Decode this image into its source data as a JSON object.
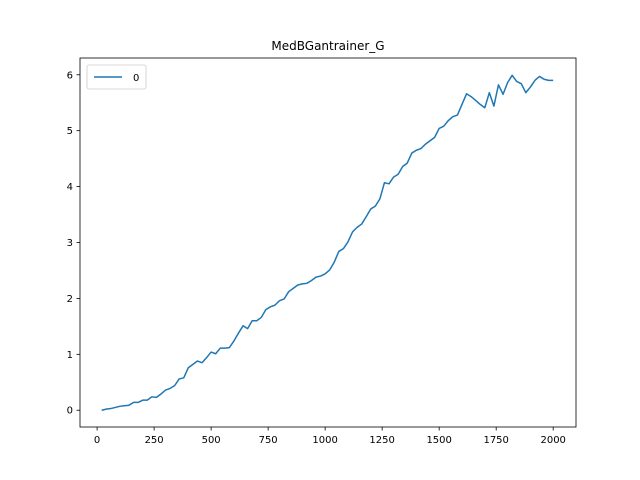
{
  "chart_data": {
    "type": "line",
    "title": "MedBGantrainer_G",
    "xlabel": "",
    "ylabel": "",
    "xlim": [
      -75,
      2100
    ],
    "ylim": [
      -0.3,
      6.3
    ],
    "xticks": [
      0,
      250,
      500,
      750,
      1000,
      1250,
      1500,
      1750,
      2000
    ],
    "xtick_labels": [
      "0",
      "250",
      "500",
      "750",
      "1000",
      "1250",
      "1500",
      "1750",
      "2000"
    ],
    "yticks": [
      0,
      1,
      2,
      3,
      4,
      5,
      6
    ],
    "ytick_labels": [
      "0",
      "1",
      "2",
      "3",
      "4",
      "5",
      "6"
    ],
    "grid": false,
    "legend_position": "top-left",
    "series": [
      {
        "name": "0",
        "color": "#1f77b4",
        "x": [
          20,
          40,
          60,
          80,
          100,
          120,
          140,
          160,
          180,
          200,
          220,
          240,
          260,
          280,
          300,
          320,
          340,
          360,
          380,
          400,
          420,
          440,
          460,
          480,
          500,
          520,
          540,
          560,
          580,
          600,
          620,
          640,
          660,
          680,
          700,
          720,
          740,
          760,
          780,
          800,
          820,
          840,
          860,
          880,
          900,
          920,
          940,
          960,
          980,
          1000,
          1020,
          1040,
          1060,
          1080,
          1100,
          1120,
          1140,
          1160,
          1180,
          1200,
          1220,
          1240,
          1260,
          1280,
          1300,
          1320,
          1340,
          1360,
          1380,
          1400,
          1420,
          1440,
          1460,
          1480,
          1500,
          1520,
          1540,
          1560,
          1580,
          1600,
          1620,
          1640,
          1660,
          1680,
          1700,
          1720,
          1740,
          1760,
          1780,
          1800,
          1820,
          1840,
          1860,
          1880,
          1900,
          1920,
          1940,
          1960,
          1980,
          2000
        ],
        "y": [
          0.0,
          0.02,
          0.03,
          0.05,
          0.07,
          0.08,
          0.09,
          0.14,
          0.14,
          0.18,
          0.18,
          0.24,
          0.23,
          0.29,
          0.36,
          0.39,
          0.44,
          0.56,
          0.58,
          0.76,
          0.82,
          0.88,
          0.85,
          0.94,
          1.04,
          1.01,
          1.11,
          1.11,
          1.12,
          1.24,
          1.38,
          1.51,
          1.46,
          1.6,
          1.6,
          1.66,
          1.8,
          1.85,
          1.88,
          1.96,
          1.99,
          2.12,
          2.18,
          2.24,
          2.26,
          2.27,
          2.32,
          2.38,
          2.4,
          2.44,
          2.51,
          2.65,
          2.84,
          2.89,
          3.01,
          3.19,
          3.27,
          3.33,
          3.46,
          3.6,
          3.65,
          3.78,
          4.07,
          4.05,
          4.17,
          4.22,
          4.36,
          4.42,
          4.6,
          4.65,
          4.68,
          4.76,
          4.82,
          4.88,
          5.04,
          5.08,
          5.18,
          5.25,
          5.28,
          5.47,
          5.66,
          5.61,
          5.54,
          5.47,
          5.41,
          5.68,
          5.44,
          5.82,
          5.65,
          5.86,
          5.99,
          5.88,
          5.84,
          5.68,
          5.78,
          5.9,
          5.97,
          5.92,
          5.9,
          5.9
        ]
      }
    ]
  }
}
